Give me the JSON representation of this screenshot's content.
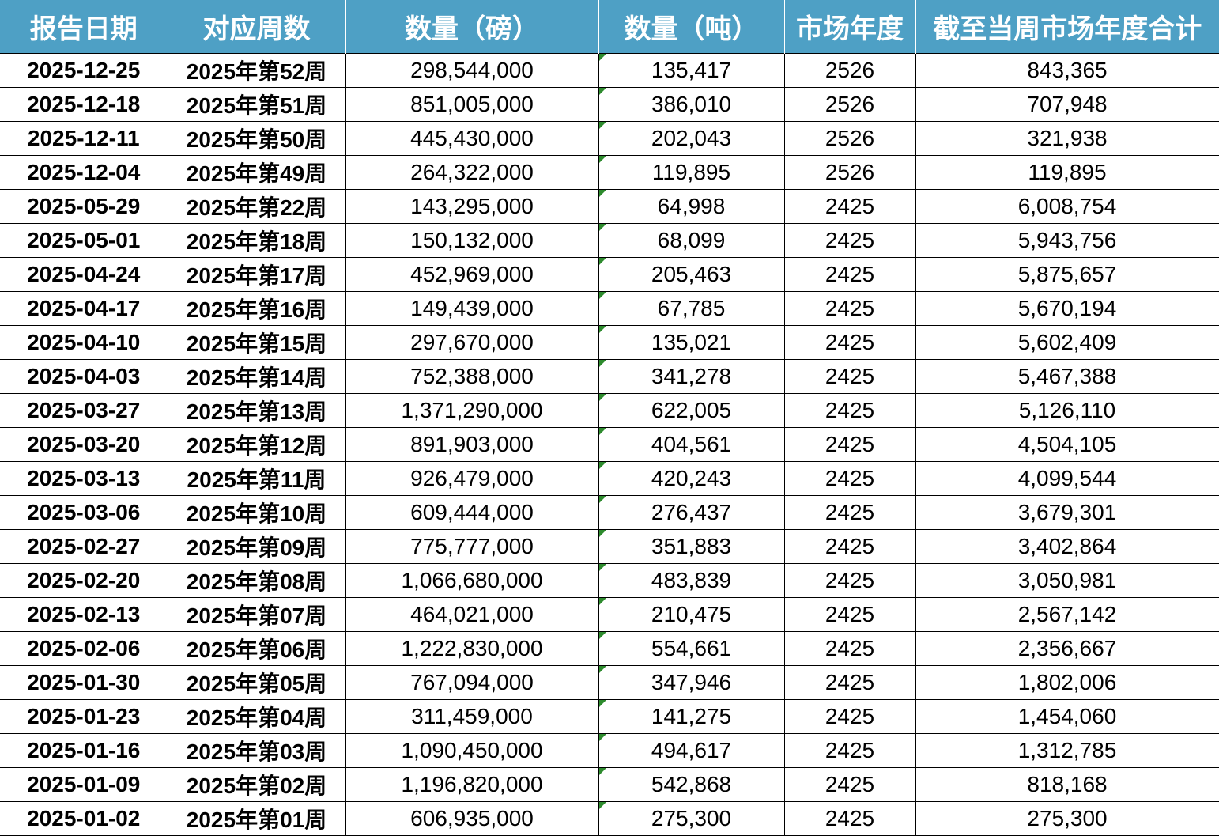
{
  "headers": [
    "报告日期",
    "对应周数",
    "数量（磅）",
    "数量（吨）",
    "市场年度",
    "截至当周市场年度合计"
  ],
  "rows": [
    {
      "date": "2025-12-25",
      "week": "2025年第52周",
      "lbs": "298,544,000",
      "tons": "135,417",
      "year": "2526",
      "total": "843,365"
    },
    {
      "date": "2025-12-18",
      "week": "2025年第51周",
      "lbs": "851,005,000",
      "tons": "386,010",
      "year": "2526",
      "total": "707,948"
    },
    {
      "date": "2025-12-11",
      "week": "2025年第50周",
      "lbs": "445,430,000",
      "tons": "202,043",
      "year": "2526",
      "total": "321,938"
    },
    {
      "date": "2025-12-04",
      "week": "2025年第49周",
      "lbs": "264,322,000",
      "tons": "119,895",
      "year": "2526",
      "total": "119,895"
    },
    {
      "date": "2025-05-29",
      "week": "2025年第22周",
      "lbs": "143,295,000",
      "tons": "64,998",
      "year": "2425",
      "total": "6,008,754"
    },
    {
      "date": "2025-05-01",
      "week": "2025年第18周",
      "lbs": "150,132,000",
      "tons": "68,099",
      "year": "2425",
      "total": "5,943,756"
    },
    {
      "date": "2025-04-24",
      "week": "2025年第17周",
      "lbs": "452,969,000",
      "tons": "205,463",
      "year": "2425",
      "total": "5,875,657"
    },
    {
      "date": "2025-04-17",
      "week": "2025年第16周",
      "lbs": "149,439,000",
      "tons": "67,785",
      "year": "2425",
      "total": "5,670,194"
    },
    {
      "date": "2025-04-10",
      "week": "2025年第15周",
      "lbs": "297,670,000",
      "tons": "135,021",
      "year": "2425",
      "total": "5,602,409"
    },
    {
      "date": "2025-04-03",
      "week": "2025年第14周",
      "lbs": "752,388,000",
      "tons": "341,278",
      "year": "2425",
      "total": "5,467,388"
    },
    {
      "date": "2025-03-27",
      "week": "2025年第13周",
      "lbs": "1,371,290,000",
      "tons": "622,005",
      "year": "2425",
      "total": "5,126,110"
    },
    {
      "date": "2025-03-20",
      "week": "2025年第12周",
      "lbs": "891,903,000",
      "tons": "404,561",
      "year": "2425",
      "total": "4,504,105"
    },
    {
      "date": "2025-03-13",
      "week": "2025年第11周",
      "lbs": "926,479,000",
      "tons": "420,243",
      "year": "2425",
      "total": "4,099,544"
    },
    {
      "date": "2025-03-06",
      "week": "2025年第10周",
      "lbs": "609,444,000",
      "tons": "276,437",
      "year": "2425",
      "total": "3,679,301"
    },
    {
      "date": "2025-02-27",
      "week": "2025年第09周",
      "lbs": "775,777,000",
      "tons": "351,883",
      "year": "2425",
      "total": "3,402,864"
    },
    {
      "date": "2025-02-20",
      "week": "2025年第08周",
      "lbs": "1,066,680,000",
      "tons": "483,839",
      "year": "2425",
      "total": "3,050,981"
    },
    {
      "date": "2025-02-13",
      "week": "2025年第07周",
      "lbs": "464,021,000",
      "tons": "210,475",
      "year": "2425",
      "total": "2,567,142"
    },
    {
      "date": "2025-02-06",
      "week": "2025年第06周",
      "lbs": "1,222,830,000",
      "tons": "554,661",
      "year": "2425",
      "total": "2,356,667"
    },
    {
      "date": "2025-01-30",
      "week": "2025年第05周",
      "lbs": "767,094,000",
      "tons": "347,946",
      "year": "2425",
      "total": "1,802,006"
    },
    {
      "date": "2025-01-23",
      "week": "2025年第04周",
      "lbs": "311,459,000",
      "tons": "141,275",
      "year": "2425",
      "total": "1,454,060"
    },
    {
      "date": "2025-01-16",
      "week": "2025年第03周",
      "lbs": "1,090,450,000",
      "tons": "494,617",
      "year": "2425",
      "total": "1,312,785"
    },
    {
      "date": "2025-01-09",
      "week": "2025年第02周",
      "lbs": "1,196,820,000",
      "tons": "542,868",
      "year": "2425",
      "total": "818,168"
    },
    {
      "date": "2025-01-02",
      "week": "2025年第01周",
      "lbs": "606,935,000",
      "tons": "275,300",
      "year": "2425",
      "total": "275,300"
    }
  ],
  "colors": {
    "header_bg": "#4ea0c5",
    "header_text": "#ffffff",
    "grid": "#000000",
    "error_flag": "#2e8b2e"
  }
}
